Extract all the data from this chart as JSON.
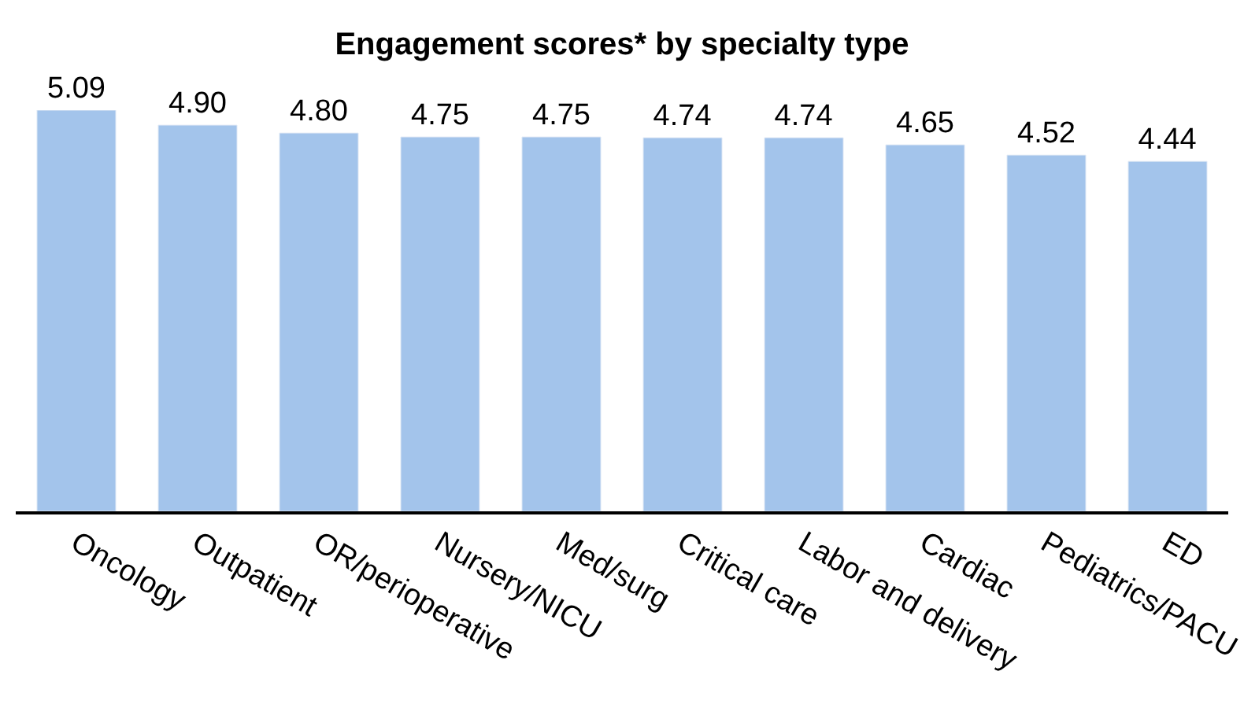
{
  "chart_data": {
    "type": "bar",
    "title": "Engagement scores* by specialty type",
    "categories": [
      "Oncology",
      "Outpatient",
      "OR/perioperative",
      "Nursery/NICU",
      "Med/surg",
      "Critical care",
      "Labor and delivery",
      "Cardiac",
      "Pediatrics/PACU",
      "ED"
    ],
    "values": [
      5.09,
      4.9,
      4.8,
      4.75,
      4.75,
      4.74,
      4.74,
      4.65,
      4.52,
      4.44
    ],
    "value_labels": [
      "5.09",
      "4.90",
      "4.80",
      "4.75",
      "4.75",
      "4.74",
      "4.74",
      "4.65",
      "4.52",
      "4.44"
    ],
    "color": "#a3c4eb"
  }
}
